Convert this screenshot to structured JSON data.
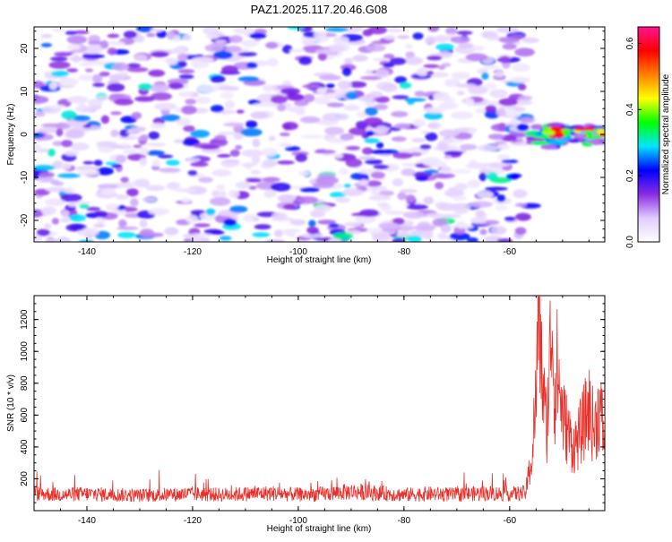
{
  "title": "PAZ1.2025.117.20.46.G08",
  "chart_data": [
    {
      "type": "heatmap",
      "xlabel": "Height of straight line (km)",
      "ylabel": "Frequency (Hz)",
      "xlim": [
        -150,
        -42
      ],
      "ylim": [
        -25,
        25
      ],
      "xticks": [
        -140,
        -120,
        -100,
        -80,
        -60
      ],
      "yticks": [
        -20,
        -10,
        0,
        10,
        20
      ],
      "grid": false,
      "colorbar": {
        "label": "Normalized spectral amplitude",
        "range": [
          0,
          0.65
        ],
        "ticks": [
          0.0,
          0.2,
          0.4,
          0.6
        ],
        "colors": [
          "#ffffff",
          "#e0ccff",
          "#8a2be2",
          "#0000ff",
          "#00e5ff",
          "#00ff00",
          "#ffff00",
          "#ff8000",
          "#ff0000",
          "#ff1493"
        ]
      },
      "features": [
        {
          "x_range": [
            -150,
            -56
          ],
          "freq_range": [
            -25,
            25
          ],
          "amplitude": 0.12
        },
        {
          "x_range": [
            -56,
            -42
          ],
          "freq_range": [
            -3,
            2
          ],
          "amplitude": 0.6
        }
      ]
    },
    {
      "type": "line",
      "xlabel": "Height of straight line (km)",
      "ylabel": "SNR (10 * v/v)",
      "xlim": [
        -150,
        -42
      ],
      "ylim": [
        0,
        1350
      ],
      "xticks": [
        -140,
        -120,
        -100,
        -80,
        -60
      ],
      "yticks": [
        200,
        400,
        600,
        800,
        1000,
        1200
      ],
      "grid": false,
      "series": [
        {
          "color": "#e8302b",
          "x": [
            -150,
            -145,
            -140,
            -135,
            -130,
            -125,
            -120,
            -115,
            -110,
            -105,
            -100,
            -95,
            -90,
            -85,
            -80,
            -75,
            -70,
            -65,
            -60,
            -57,
            -56,
            -55,
            -54.5,
            -54,
            -53,
            -52,
            -51.5,
            -51,
            -50,
            -49,
            -48,
            -47,
            -46,
            -45,
            -44,
            -43,
            -42
          ],
          "y": [
            110,
            100,
            105,
            100,
            95,
            100,
            105,
            100,
            105,
            110,
            100,
            105,
            120,
            110,
            100,
            105,
            100,
            110,
            105,
            110,
            300,
            700,
            1350,
            900,
            500,
            1250,
            700,
            900,
            600,
            500,
            400,
            450,
            550,
            650,
            500,
            650,
            450
          ]
        }
      ]
    }
  ]
}
